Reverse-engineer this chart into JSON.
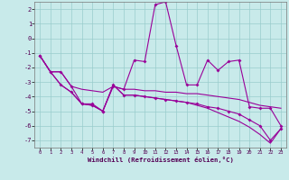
{
  "x": [
    0,
    1,
    2,
    3,
    4,
    5,
    6,
    7,
    8,
    9,
    10,
    11,
    12,
    13,
    14,
    15,
    16,
    17,
    18,
    19,
    20,
    21,
    22,
    23
  ],
  "line1": [
    -1.2,
    -2.3,
    -2.3,
    -3.3,
    -4.5,
    -4.5,
    -5.0,
    -3.3,
    -3.5,
    -1.5,
    -1.6,
    2.3,
    2.5,
    -0.5,
    -3.2,
    -3.2,
    -1.5,
    -2.2,
    -1.6,
    -1.5,
    -4.7,
    -4.8,
    -4.8,
    -6.0
  ],
  "line2": [
    -1.2,
    -2.3,
    -2.3,
    -3.3,
    -3.5,
    -3.6,
    -3.7,
    -3.3,
    -3.5,
    -3.5,
    -3.6,
    -3.6,
    -3.7,
    -3.7,
    -3.8,
    -3.8,
    -3.9,
    -4.0,
    -4.1,
    -4.2,
    -4.4,
    -4.6,
    -4.7,
    -4.8
  ],
  "line3": [
    -1.2,
    -2.3,
    -3.2,
    -3.7,
    -4.5,
    -4.6,
    -5.0,
    -3.2,
    -3.9,
    -3.9,
    -4.0,
    -4.1,
    -4.2,
    -4.3,
    -4.4,
    -4.5,
    -4.7,
    -4.8,
    -5.0,
    -5.2,
    -5.6,
    -6.0,
    -7.0,
    -6.2
  ],
  "line4": [
    -1.2,
    -2.3,
    -3.2,
    -3.7,
    -4.5,
    -4.6,
    -5.0,
    -3.2,
    -3.9,
    -3.9,
    -4.0,
    -4.1,
    -4.2,
    -4.3,
    -4.4,
    -4.6,
    -4.8,
    -5.1,
    -5.4,
    -5.7,
    -6.1,
    -6.6,
    -7.2,
    -6.2
  ],
  "color": "#990099",
  "bg_color": "#c8eaea",
  "grid_color": "#99cccc",
  "xlabel": "Windchill (Refroidissement éolien,°C)",
  "ylim": [
    -7.5,
    2.5
  ],
  "xlim": [
    -0.5,
    23.5
  ],
  "yticks": [
    -7,
    -6,
    -5,
    -4,
    -3,
    -2,
    -1,
    0,
    1,
    2
  ],
  "xticks": [
    0,
    1,
    2,
    3,
    4,
    5,
    6,
    7,
    8,
    9,
    10,
    11,
    12,
    13,
    14,
    15,
    16,
    17,
    18,
    19,
    20,
    21,
    22,
    23
  ]
}
